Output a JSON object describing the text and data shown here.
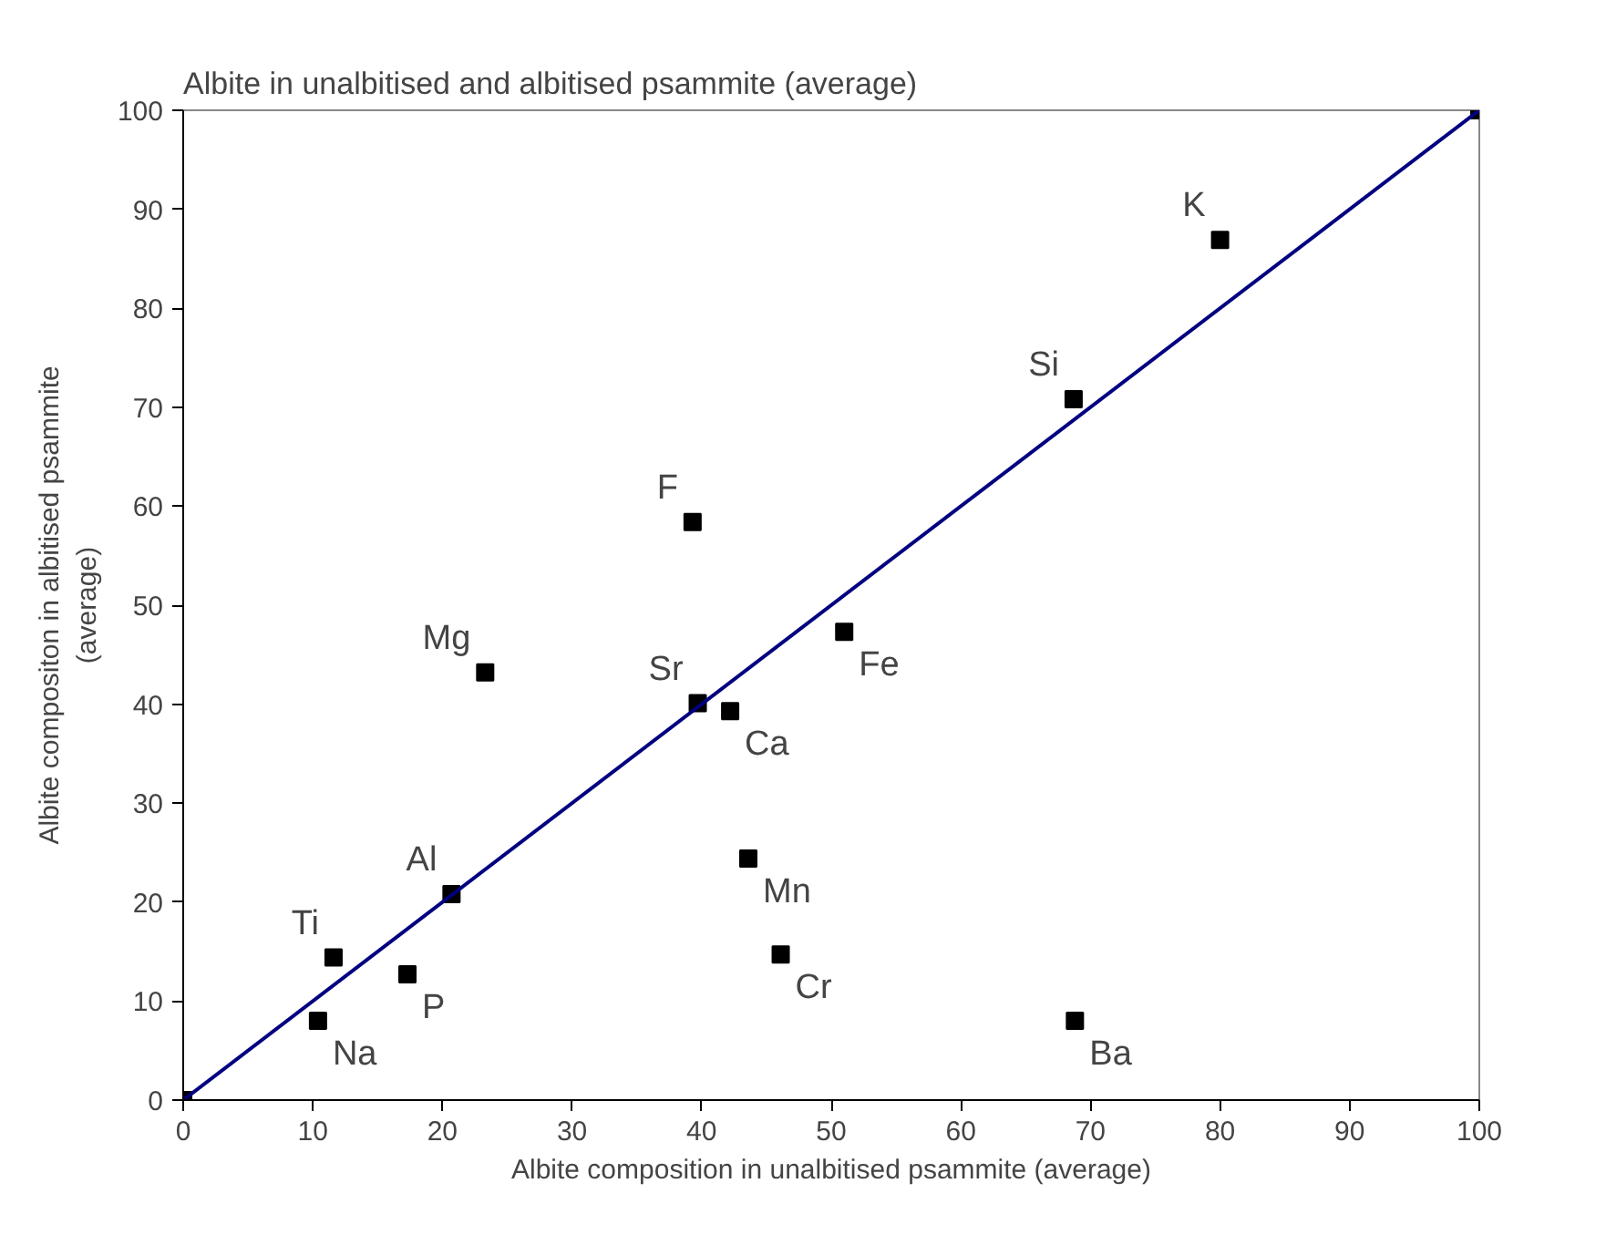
{
  "chart_data": {
    "type": "scatter",
    "title": "Albite in unalbitised and albitised psammite (average)",
    "xlabel": "Albite composition in unalbitised psammite (average)",
    "ylabel": "Albite compositon in albitised psammite\n(average)",
    "series": [
      {
        "marker": "square",
        "color": "#000000",
        "x": [
          0,
          10.4,
          11.6,
          17.3,
          20.7,
          23.3,
          39.7,
          42.2,
          39.3,
          43.6,
          46.1,
          51.0,
          68.7,
          80.0,
          68.8,
          100
        ],
        "values": [
          0,
          8.0,
          14.4,
          12.7,
          20.8,
          43.2,
          40.1,
          39.3,
          58.4,
          24.4,
          14.7,
          47.3,
          70.8,
          86.9,
          8.0,
          100
        ]
      },
      {
        "type": "line",
        "x": [
          0,
          100
        ],
        "values": [
          0,
          100
        ],
        "color": "#000080"
      }
    ],
    "xlim": [
      0,
      100
    ],
    "ylim": [
      0,
      100
    ],
    "xticks": [
      0,
      10,
      20,
      30,
      40,
      50,
      60,
      70,
      80,
      90,
      100
    ],
    "yticks": [
      0,
      10,
      20,
      30,
      40,
      50,
      60,
      70,
      80,
      90,
      100
    ],
    "grid": false,
    "annotations": [
      {
        "text": "Na",
        "x": 10.4,
        "y": 8.0
      },
      {
        "text": "Ti",
        "x": 11.6,
        "y": 14.4
      },
      {
        "text": "P",
        "x": 17.3,
        "y": 12.7
      },
      {
        "text": "Al",
        "x": 20.7,
        "y": 20.8
      },
      {
        "text": "Mg",
        "x": 23.3,
        "y": 43.2
      },
      {
        "text": "Sr",
        "x": 39.7,
        "y": 40.1
      },
      {
        "text": "Ca",
        "x": 42.2,
        "y": 39.3
      },
      {
        "text": "F",
        "x": 39.3,
        "y": 58.4
      },
      {
        "text": "Mn",
        "x": 43.6,
        "y": 24.4
      },
      {
        "text": "Cr",
        "x": 46.1,
        "y": 14.7
      },
      {
        "text": "Fe",
        "x": 51.0,
        "y": 47.3
      },
      {
        "text": "Si",
        "x": 68.7,
        "y": 70.8
      },
      {
        "text": "K",
        "x": 80.0,
        "y": 86.9
      },
      {
        "text": "Ba",
        "x": 68.8,
        "y": 8.0
      }
    ]
  }
}
